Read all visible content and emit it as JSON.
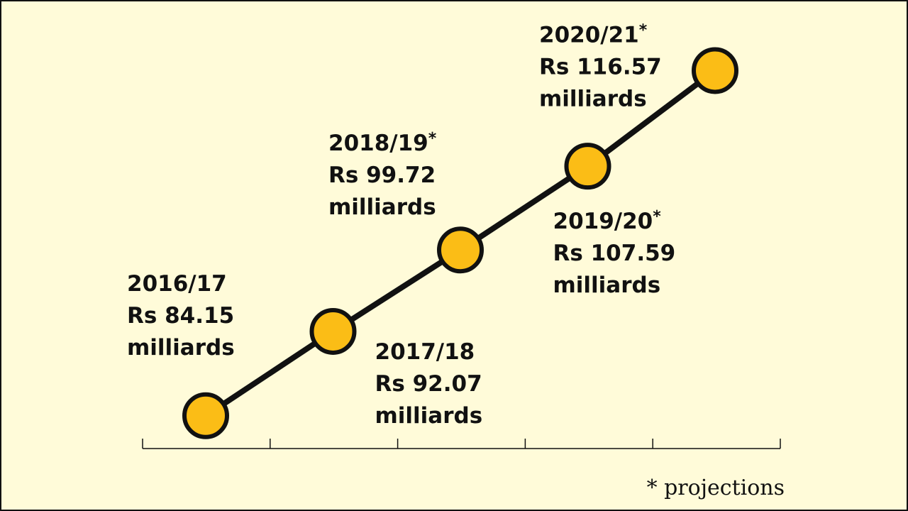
{
  "chart_data": {
    "type": "line",
    "title": "",
    "xlabel": "",
    "ylabel": "",
    "unit": "Rs milliards",
    "ylim": [
      80,
      120
    ],
    "points": [
      {
        "period": "2016/17",
        "value": 84.15,
        "label_amount": "Rs 84.15",
        "label_unit": "milliards",
        "projection": false
      },
      {
        "period": "2017/18",
        "value": 92.07,
        "label_amount": "Rs 92.07",
        "label_unit": "milliards",
        "projection": false
      },
      {
        "period": "2018/19",
        "value": 99.72,
        "label_amount": "Rs 99.72",
        "label_unit": "milliards",
        "projection": true
      },
      {
        "period": "2019/20",
        "value": 107.59,
        "label_amount": "Rs 107.59",
        "label_unit": "milliards",
        "projection": true
      },
      {
        "period": "2020/21",
        "value": 116.57,
        "label_amount": "Rs 116.57",
        "label_unit": "milliards",
        "projection": true
      }
    ],
    "projection_marker": "*",
    "footnote": "* projections",
    "colors": {
      "background": "#fffbd9",
      "line": "#111111",
      "marker_fill": "#fbbd16",
      "text": "#111111"
    }
  }
}
